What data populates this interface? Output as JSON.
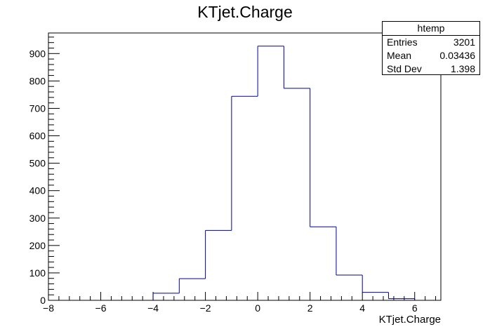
{
  "chart_data": {
    "type": "bar",
    "title": "KTjet.Charge",
    "xlabel": "KTjet.Charge",
    "ylabel": "",
    "xlim": [
      -8,
      7
    ],
    "ylim": [
      0,
      975
    ],
    "x_ticks": [
      -8,
      -6,
      -4,
      -2,
      0,
      2,
      4,
      6
    ],
    "y_ticks": [
      0,
      100,
      200,
      300,
      400,
      500,
      600,
      700,
      800,
      900
    ],
    "bin_edges": [
      -8,
      -7,
      -6,
      -5,
      -4,
      -3,
      -2,
      -1,
      0,
      1,
      2,
      3,
      4,
      5,
      6,
      7
    ],
    "values": [
      0,
      0,
      0,
      0,
      26,
      79,
      255,
      744,
      927,
      773,
      268,
      92,
      29,
      6,
      0
    ],
    "line_color": "#000099",
    "stats": {
      "name": "htemp",
      "rows": [
        {
          "label": "Entries",
          "value": "3201"
        },
        {
          "label": "Mean",
          "value": "0.03436"
        },
        {
          "label": "Std Dev",
          "value": "1.398"
        }
      ]
    }
  }
}
